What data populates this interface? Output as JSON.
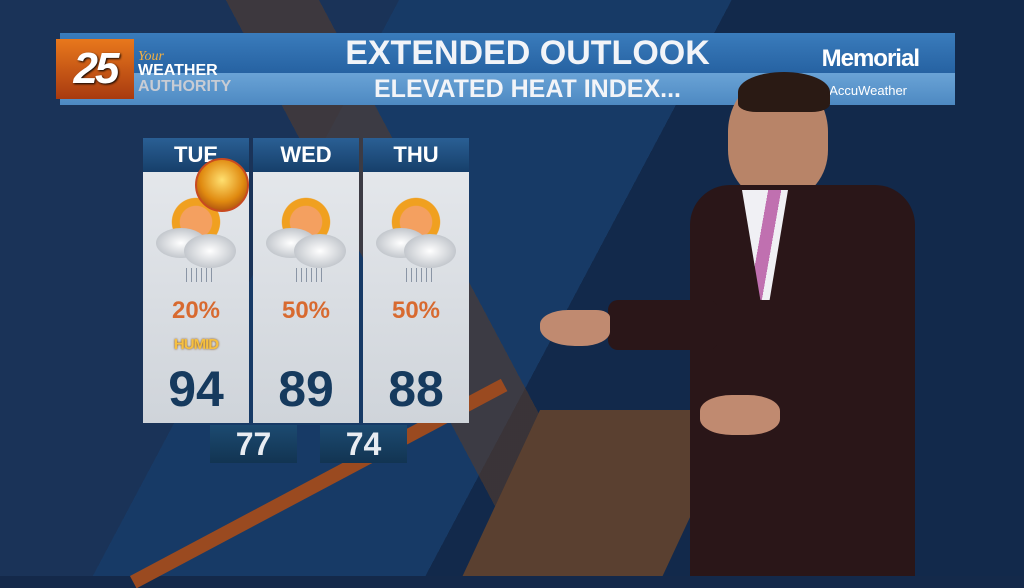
{
  "banner": {
    "logo_number": "25",
    "logo_your": "Your",
    "logo_line1": "WEATHER",
    "logo_line2": "AUTHORITY",
    "title": "EXTENDED OUTLOOK",
    "subtitle": "ELEVATED HEAT INDEX...",
    "sponsor": "Memorial",
    "partner": "AccuWeather"
  },
  "forecast": [
    {
      "day": "TUE",
      "icon": "partly-sunny-showers-icon",
      "precip": "20%",
      "note": "HUMID",
      "high": "94"
    },
    {
      "day": "WED",
      "icon": "partly-sunny-showers-icon",
      "precip": "50%",
      "high": "89"
    },
    {
      "day": "THU",
      "icon": "mostly-cloudy-showers-icon",
      "precip": "50%",
      "high": "88"
    }
  ],
  "lows": [
    "77",
    "74"
  ],
  "colors": {
    "banner": "#2662a2",
    "precip": "#d86a30",
    "high": "#163a5e",
    "card": "#dde1e6"
  }
}
